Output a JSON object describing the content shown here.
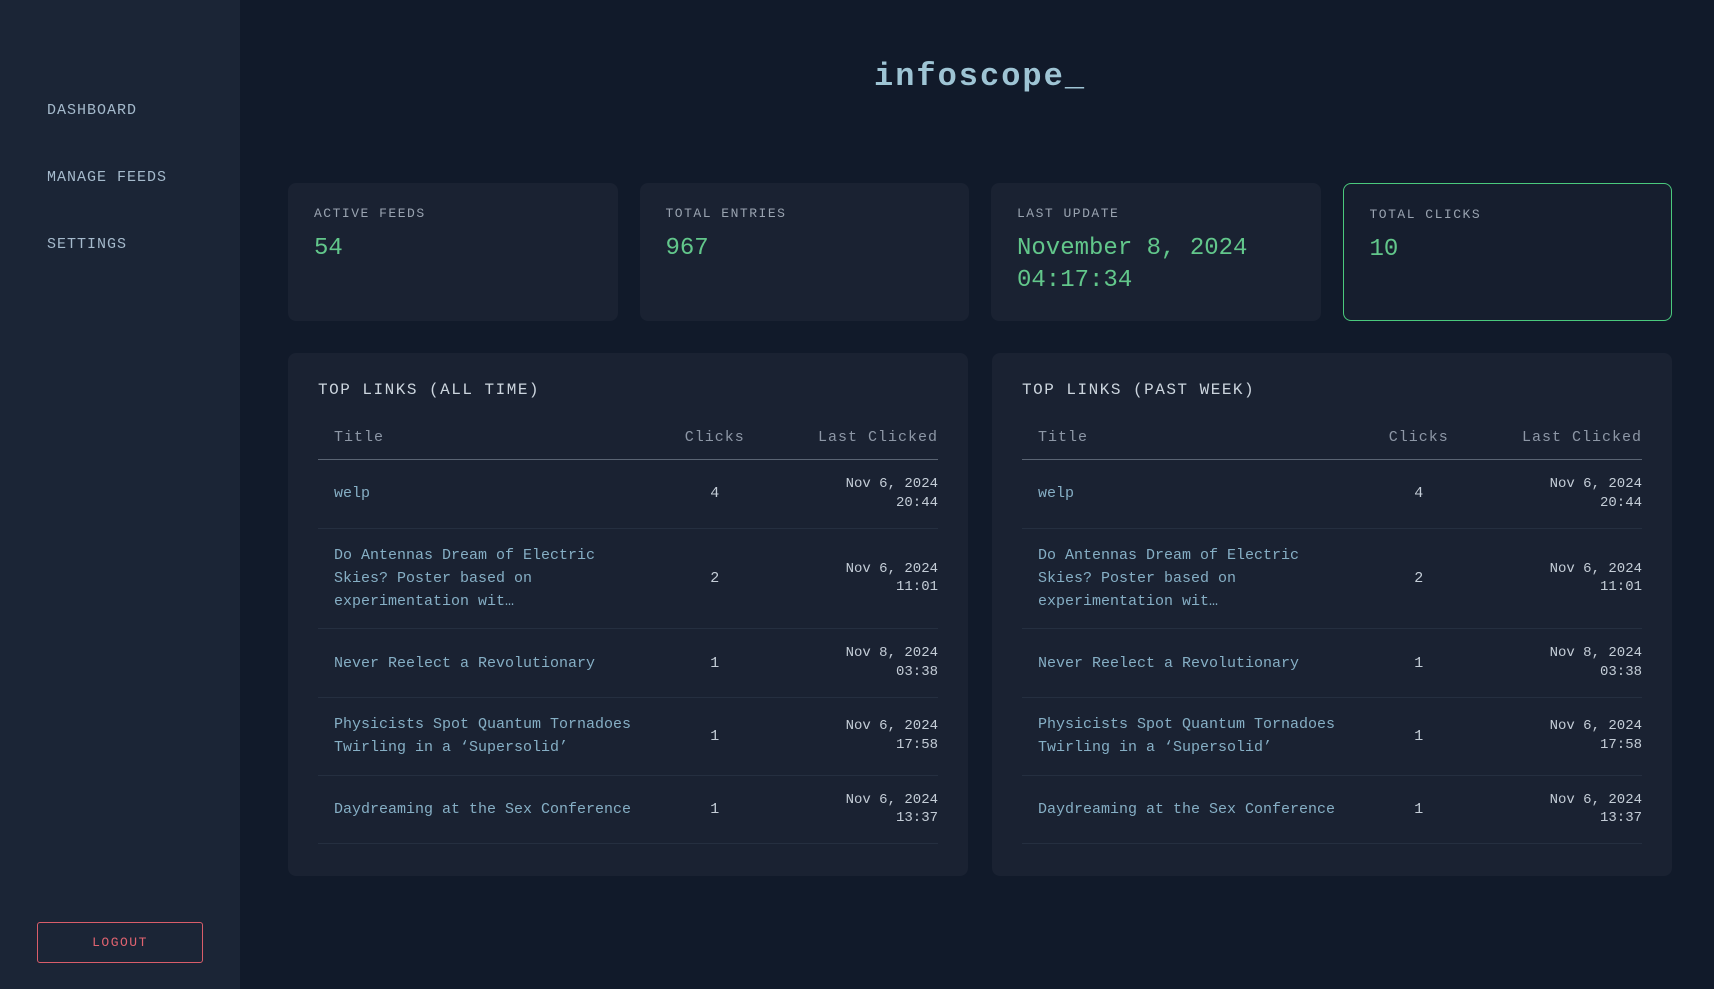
{
  "app": {
    "title": "infoscope_"
  },
  "colors": {
    "background": "#111a2a",
    "sidebar_background": "#1b2536",
    "card_background": "#1a2232",
    "accent_green": "#62c78b",
    "highlight_border_green": "#4ac97d",
    "link_blue": "#86afc5",
    "title_blue": "#9ec4d4",
    "logout_red": "#e06370"
  },
  "sidebar": {
    "items": [
      {
        "label": "DASHBOARD"
      },
      {
        "label": "MANAGE FEEDS"
      },
      {
        "label": "SETTINGS"
      }
    ],
    "logout_label": "LOGOUT"
  },
  "stats": [
    {
      "label": "ACTIVE FEEDS",
      "value": "54"
    },
    {
      "label": "TOTAL ENTRIES",
      "value": "967"
    },
    {
      "label": "LAST UPDATE",
      "value": "November 8, 2024 04:17:34"
    },
    {
      "label": "TOTAL CLICKS",
      "value": "10"
    }
  ],
  "tables": [
    {
      "title": "TOP LINKS (ALL TIME)",
      "columns": {
        "title": "Title",
        "clicks": "Clicks",
        "date": "Last Clicked"
      },
      "rows": [
        {
          "title": "welp",
          "clicks": "4",
          "date": "Nov 6, 2024",
          "time": "20:44"
        },
        {
          "title": "Do Antennas Dream of Electric Skies? Poster based on experimentation wit…",
          "clicks": "2",
          "date": "Nov 6, 2024",
          "time": "11:01"
        },
        {
          "title": "Never Reelect a Revolutionary",
          "clicks": "1",
          "date": "Nov 8, 2024",
          "time": "03:38"
        },
        {
          "title": "Physicists Spot Quantum Tornadoes Twirling in a ‘Supersolid’",
          "clicks": "1",
          "date": "Nov 6, 2024",
          "time": "17:58"
        },
        {
          "title": "Daydreaming at the Sex Conference",
          "clicks": "1",
          "date": "Nov 6, 2024",
          "time": "13:37"
        }
      ]
    },
    {
      "title": "TOP LINKS (PAST WEEK)",
      "columns": {
        "title": "Title",
        "clicks": "Clicks",
        "date": "Last Clicked"
      },
      "rows": [
        {
          "title": "welp",
          "clicks": "4",
          "date": "Nov 6, 2024",
          "time": "20:44"
        },
        {
          "title": "Do Antennas Dream of Electric Skies? Poster based on experimentation wit…",
          "clicks": "2",
          "date": "Nov 6, 2024",
          "time": "11:01"
        },
        {
          "title": "Never Reelect a Revolutionary",
          "clicks": "1",
          "date": "Nov 8, 2024",
          "time": "03:38"
        },
        {
          "title": "Physicists Spot Quantum Tornadoes Twirling in a ‘Supersolid’",
          "clicks": "1",
          "date": "Nov 6, 2024",
          "time": "17:58"
        },
        {
          "title": "Daydreaming at the Sex Conference",
          "clicks": "1",
          "date": "Nov 6, 2024",
          "time": "13:37"
        }
      ]
    }
  ]
}
